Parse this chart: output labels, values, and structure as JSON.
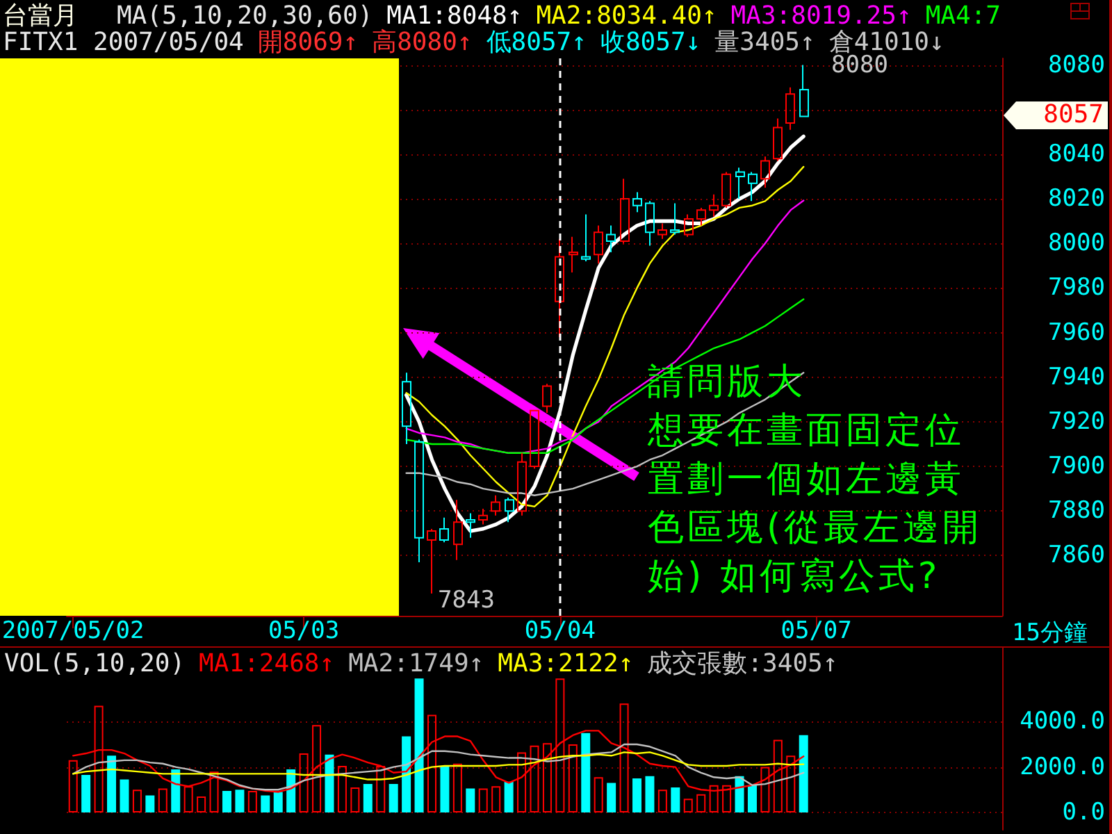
{
  "chart_data": [
    {
      "type": "candlestick",
      "title": "台當月",
      "subtitle": "FITX1 2007/05/04",
      "legend_title": "MA(5,10,20,30,60)",
      "xlabel": "15分鐘",
      "categories": [
        "2007/05/02",
        null,
        null,
        null,
        null,
        null,
        null,
        null,
        null,
        null,
        null,
        null,
        null,
        null,
        null,
        null,
        null,
        null,
        "05/03",
        null,
        null,
        null,
        null,
        null,
        null,
        null,
        null,
        null,
        null,
        null,
        null,
        null,
        null,
        null,
        null,
        null,
        null,
        null,
        "05/04",
        null,
        null,
        null,
        null,
        null,
        null,
        null,
        null,
        null,
        null,
        null,
        null,
        null,
        null,
        null,
        null,
        null,
        null,
        null,
        "05/07",
        null,
        null,
        null,
        null,
        null,
        null,
        null,
        null,
        null,
        null,
        null,
        null,
        null,
        null
      ],
      "ohlc": [
        null,
        null,
        null,
        null,
        null,
        null,
        null,
        null,
        null,
        null,
        null,
        null,
        null,
        null,
        null,
        null,
        null,
        null,
        null,
        null,
        null,
        null,
        null,
        null,
        null,
        null,
        [
          7938,
          7942,
          7910,
          7918
        ],
        [
          7911,
          7912,
          7857,
          7868
        ],
        [
          7867,
          7872,
          7843,
          7871
        ],
        [
          7872,
          7877,
          7866,
          7867
        ],
        [
          7865,
          7885,
          7858,
          7875
        ],
        [
          7876,
          7879,
          7868,
          7875
        ],
        [
          7876,
          7881,
          7874,
          7878
        ],
        [
          7880,
          7887,
          7878,
          7884
        ],
        [
          7885,
          7886,
          7875,
          7880
        ],
        [
          7880,
          7906,
          7878,
          7902
        ],
        [
          7900,
          7925,
          7899,
          7925
        ],
        [
          7927,
          7937,
          7924,
          7936
        ],
        [
          7974,
          8002,
          7958,
          7994
        ],
        [
          7995,
          8003,
          7987,
          7996
        ],
        [
          7994,
          8013,
          7992,
          7993
        ],
        [
          7995,
          8008,
          7991,
          8005
        ],
        [
          8004,
          8008,
          7996,
          8001
        ],
        [
          8001,
          8029,
          8000,
          8020
        ],
        [
          8020,
          8023,
          8014,
          8017
        ],
        [
          8018,
          8019,
          7999,
          8005
        ],
        [
          8004,
          8009,
          8002,
          8006
        ],
        [
          8006,
          8018,
          8004,
          8005
        ],
        [
          8004,
          8013,
          8003,
          8011
        ],
        [
          8011,
          8016,
          8008,
          8015
        ],
        [
          8015,
          8022,
          8012,
          8017
        ],
        [
          8017,
          8032,
          8016,
          8031
        ],
        [
          8032,
          8034,
          8020,
          8030
        ],
        [
          8031,
          8032,
          8019,
          8027
        ],
        [
          8029,
          8039,
          8025,
          8037
        ],
        [
          8038,
          8056,
          8037,
          8052
        ],
        [
          8054,
          8070,
          8051,
          8067
        ],
        [
          8069,
          8080,
          8057,
          8057
        ],
        null,
        null,
        null,
        null,
        null,
        null,
        null,
        null,
        null,
        null,
        null,
        null,
        null,
        null,
        null
      ],
      "colors": [
        null,
        null,
        null,
        null,
        null,
        null,
        null,
        null,
        null,
        null,
        null,
        null,
        null,
        null,
        null,
        null,
        null,
        null,
        null,
        null,
        null,
        null,
        null,
        null,
        null,
        null,
        "#00ffff",
        "#00ffff",
        "#ff0000",
        "#00ffff",
        "#ff0000",
        "#00ffff",
        "#ff0000",
        "#ff0000",
        "#00ffff",
        "#ff0000",
        "#ff0000",
        "#ff0000",
        "#ff0000",
        "#ff0000",
        "#00ffff",
        "#ff0000",
        "#00ffff",
        "#ff0000",
        "#00ffff",
        "#00ffff",
        "#ff0000",
        "#00ffff",
        "#ff0000",
        "#ff0000",
        "#ff0000",
        "#ff0000",
        "#00ffff",
        "#00ffff",
        "#ff0000",
        "#ff0000",
        "#ff0000",
        "#00ffff",
        null,
        null,
        null,
        null,
        null,
        null,
        null,
        null,
        null,
        null,
        null,
        null,
        null,
        null,
        null
      ],
      "series": [
        {
          "name": "MA1:8048↑",
          "type": "line",
          "color": "#ffffff",
          "values": [
            null,
            null,
            null,
            null,
            null,
            null,
            null,
            null,
            null,
            null,
            null,
            null,
            null,
            null,
            null,
            null,
            null,
            null,
            null,
            null,
            null,
            null,
            null,
            null,
            null,
            null,
            7932,
            7920,
            7903,
            7890,
            7879,
            7871,
            7872,
            7874,
            7877,
            7882,
            7891,
            7905,
            7925,
            7950,
            7970,
            7989,
            7999,
            8004,
            8008,
            8010,
            8010,
            8010,
            8009,
            8009,
            8011,
            8016,
            8020,
            8023,
            8028,
            8036,
            8043,
            8048,
            null,
            null,
            null,
            null,
            null,
            null,
            null,
            null,
            null,
            null,
            null,
            null,
            null,
            null,
            null
          ]
        },
        {
          "name": "MA2:8034.40↑",
          "type": "line",
          "color": "#ffff00",
          "values": [
            null,
            null,
            null,
            null,
            null,
            null,
            null,
            null,
            null,
            null,
            null,
            null,
            null,
            null,
            null,
            null,
            null,
            null,
            null,
            null,
            null,
            null,
            null,
            null,
            null,
            null,
            7933,
            7929,
            7923,
            7918,
            7912,
            7905,
            7899,
            7893,
            7888,
            7883,
            7882,
            7887,
            7900,
            7914,
            7927,
            7939,
            7953,
            7968,
            7980,
            7991,
            7999,
            8005,
            8006,
            8008,
            8011,
            8013,
            8016,
            8017,
            8019,
            8024,
            8028,
            8034.4,
            null,
            null,
            null,
            null,
            null,
            null,
            null,
            null,
            null,
            null,
            null,
            null,
            null,
            null,
            null
          ]
        },
        {
          "name": "MA3:8019.25↑",
          "type": "line",
          "color": "#ff00ff",
          "values": [
            null,
            null,
            null,
            null,
            null,
            null,
            null,
            null,
            null,
            null,
            null,
            null,
            null,
            null,
            null,
            null,
            null,
            null,
            null,
            null,
            null,
            null,
            null,
            null,
            null,
            null,
            7917,
            7915,
            7914,
            7913,
            7911,
            7910,
            7908,
            7907,
            7906,
            7906,
            7907,
            7908,
            7911,
            7913,
            7917,
            7920,
            7927,
            7931,
            7935,
            7939,
            7943,
            7947,
            7953,
            7961,
            7969,
            7977,
            7985,
            7993,
            8000,
            8008,
            8015,
            8019.25,
            null,
            null,
            null,
            null,
            null,
            null,
            null,
            null,
            null,
            null,
            null,
            null,
            null,
            null,
            null
          ]
        },
        {
          "name": "MA4:7",
          "type": "line",
          "color": "#00ff00",
          "values": [
            null,
            null,
            null,
            null,
            null,
            null,
            null,
            null,
            null,
            null,
            null,
            null,
            null,
            null,
            null,
            null,
            null,
            null,
            null,
            null,
            null,
            null,
            null,
            null,
            null,
            null,
            7912,
            7911,
            7910,
            7910,
            7910,
            7909,
            7908,
            7907,
            7906,
            7906,
            7906,
            7906,
            7909,
            7912,
            7917,
            7921,
            7925,
            7929,
            7933,
            7937,
            7941,
            7944,
            7947,
            7950,
            7953,
            7955,
            7957,
            7960,
            7963,
            7967,
            7971,
            7975,
            null,
            null,
            null,
            null,
            null,
            null,
            null,
            null,
            null,
            null,
            null,
            null,
            null,
            null,
            null
          ]
        },
        {
          "type": "line",
          "color": "#c0c0c0",
          "values": [
            null,
            null,
            null,
            null,
            null,
            null,
            null,
            null,
            null,
            null,
            null,
            null,
            null,
            null,
            null,
            null,
            null,
            null,
            null,
            null,
            null,
            null,
            null,
            null,
            null,
            null,
            7897,
            7897,
            7896,
            7895,
            7893,
            7892,
            7890,
            7889,
            7888,
            7888,
            7887,
            7888,
            7889,
            7890,
            7892,
            7894,
            7896,
            7898,
            7900,
            7903,
            7905,
            7908,
            7911,
            7914,
            7917,
            7920,
            7924,
            7927,
            7930,
            7934,
            7938,
            7942,
            null,
            null,
            null,
            null,
            null,
            null,
            null,
            null,
            null,
            null,
            null,
            null,
            null,
            null,
            null
          ]
        }
      ],
      "ylim": [
        7833,
        8083
      ],
      "yticks": [
        7860,
        7880,
        7900,
        7920,
        7940,
        7960,
        7980,
        8000,
        8020,
        8040,
        {
          "value": 8060,
          "label": null
        },
        8080
      ],
      "grid": "y",
      "legend": "top right",
      "ref_lines": [
        {
          "axis": "x",
          "value": "05/04",
          "color": "#ffffff",
          "line_style": "dashed"
        }
      ],
      "annotations": [
        "開8069↑",
        "高8080↑",
        "低8057↑",
        "收8057↓",
        "量3405↑",
        "倉41010↓",
        "8080",
        "7843",
        "8057",
        "請問版大",
        "想要在畫面固定位置劃一個如左邊黃色區塊(從最左邊開始) 如何寫公式?"
      ]
    },
    {
      "type": "bar",
      "legend_title": "VOL(5,10,20)",
      "categories": [
        null,
        null,
        null,
        null,
        null,
        null,
        null,
        null,
        null,
        null,
        null,
        null,
        null,
        null,
        null,
        null,
        null,
        null,
        null,
        null,
        null,
        null,
        null,
        null,
        null,
        null,
        null,
        null,
        null,
        null,
        null,
        null,
        null,
        null,
        null,
        null,
        null,
        null,
        null,
        null,
        null,
        null,
        null,
        null,
        null,
        null,
        null,
        null,
        null,
        null,
        null,
        null,
        null,
        null,
        null,
        null,
        null,
        null,
        null,
        null,
        null,
        null,
        null,
        null,
        null,
        null,
        null,
        null,
        null,
        null,
        null,
        null,
        null
      ],
      "series": [
        {
          "colors": [
            "#ff0000",
            "#00ffff",
            "#ff0000",
            "#00ffff",
            "#00ffff",
            "#ff0000",
            "#00ffff",
            "#ff0000",
            "#00ffff",
            "#ff0000",
            "#ff0000",
            "#ff0000",
            "#00ffff",
            "#00ffff",
            "#ff0000",
            "#00ffff",
            "#00ffff",
            "#00ffff",
            "#ff0000",
            "#ff0000",
            "#00ffff",
            "#ff0000",
            "#ff0000",
            "#00ffff",
            "#ff0000",
            "#00ffff",
            "#00ffff",
            "#00ffff",
            "#ff0000",
            "#00ffff",
            "#ff0000",
            "#00ffff",
            "#ff0000",
            "#ff0000",
            "#00ffff",
            "#ff0000",
            "#ff0000",
            "#ff0000",
            "#ff0000",
            "#ff0000",
            "#00ffff",
            "#ff0000",
            "#00ffff",
            "#ff0000",
            "#00ffff",
            "#00ffff",
            "#ff0000",
            "#00ffff",
            "#ff0000",
            "#ff0000",
            "#ff0000",
            "#ff0000",
            "#00ffff",
            "#00ffff",
            "#ff0000",
            "#ff0000",
            "#ff0000",
            "#00ffff",
            null,
            null,
            null,
            null,
            null,
            null,
            null,
            null,
            null,
            null,
            null,
            null,
            null,
            null,
            null
          ],
          "values": [
            2300,
            1650,
            4700,
            2500,
            1450,
            1000,
            750,
            1050,
            1900,
            1150,
            700,
            1800,
            950,
            1000,
            950,
            750,
            900,
            1900,
            2600,
            3850,
            2550,
            2050,
            1100,
            1250,
            2050,
            1250,
            3350,
            5900,
            4300,
            2050,
            2150,
            1050,
            1050,
            1150,
            1350,
            2650,
            2950,
            3050,
            5900,
            3000,
            3500,
            1550,
            1300,
            4800,
            1500,
            1600,
            1000,
            1100,
            600,
            800,
            1200,
            1200,
            1600,
            1200,
            2000,
            3200,
            2500,
            3405,
            null,
            null,
            null,
            null,
            null,
            null,
            null,
            null,
            null,
            null,
            null,
            null,
            null,
            null,
            null
          ]
        },
        {
          "name": "MA1:2468↑",
          "type": "line",
          "color": "#ff0000",
          "values": [
            2500,
            2600,
            2750,
            2750,
            2600,
            2300,
            2050,
            1500,
            1250,
            1150,
            1300,
            1550,
            1400,
            1150,
            1050,
            950,
            900,
            1050,
            1400,
            2000,
            2350,
            2550,
            2400,
            2200,
            2050,
            1750,
            1800,
            2450,
            3100,
            3350,
            3350,
            3150,
            2300,
            1550,
            1300,
            1550,
            2100,
            2450,
            3050,
            3400,
            3600,
            3600,
            3050,
            2850,
            2550,
            2150,
            2050,
            2000,
            1150,
            1000,
            950,
            1000,
            1100,
            1200,
            1450,
            1850,
            2100,
            2468,
            null,
            null,
            null,
            null,
            null,
            null,
            null,
            null,
            null,
            null,
            null,
            null,
            null,
            null,
            null
          ]
        },
        {
          "name": "MA2:1749↑",
          "type": "line",
          "color": "#c0c0c0",
          "values": [
            1700,
            2000,
            2200,
            2250,
            2300,
            2300,
            2200,
            2150,
            2000,
            1900,
            1750,
            1600,
            1450,
            1200,
            1050,
            1000,
            1000,
            1150,
            1400,
            1550,
            1650,
            1700,
            1750,
            1800,
            1850,
            2000,
            2100,
            2400,
            2700,
            2700,
            2650,
            2550,
            2500,
            2450,
            2400,
            2400,
            2350,
            2250,
            2300,
            2450,
            2550,
            2600,
            2650,
            3000,
            3000,
            2900,
            2700,
            2500,
            2000,
            1750,
            1550,
            1500,
            1550,
            1200,
            1250,
            1400,
            1550,
            1749,
            null,
            null,
            null,
            null,
            null,
            null,
            null,
            null,
            null,
            null,
            null,
            null,
            null,
            null,
            null
          ]
        },
        {
          "name": "MA3:2122↑",
          "type": "line",
          "color": "#ffff00",
          "values": [
            1700,
            1800,
            1850,
            1900,
            1850,
            1800,
            1750,
            1700,
            1700,
            1700,
            1700,
            1700,
            1700,
            1700,
            1700,
            1700,
            1700,
            1700,
            1650,
            1650,
            1650,
            1650,
            1550,
            1450,
            1450,
            1500,
            1650,
            1850,
            2000,
            2050,
            2050,
            2050,
            2050,
            2050,
            2100,
            2100,
            2200,
            2350,
            2450,
            2500,
            2500,
            2550,
            2500,
            2650,
            2600,
            2650,
            2500,
            2300,
            2100,
            2050,
            2050,
            2050,
            2100,
            2100,
            2100,
            2150,
            2100,
            2122,
            null,
            null,
            null,
            null,
            null,
            null,
            null,
            null,
            null,
            null,
            null,
            null,
            null,
            null,
            null
          ]
        }
      ],
      "ylim": [
        -770,
        7260
      ],
      "yticks": [
        {
          "value": 0,
          "label": "0.0"
        },
        {
          "value": 2000,
          "label": "2000.0"
        },
        {
          "value": 4000,
          "label": "4000.0"
        }
      ],
      "grid": "y",
      "legend": "top left",
      "tick_labels": "y",
      "annotations": [
        "成交張數:3405↑"
      ]
    }
  ]
}
